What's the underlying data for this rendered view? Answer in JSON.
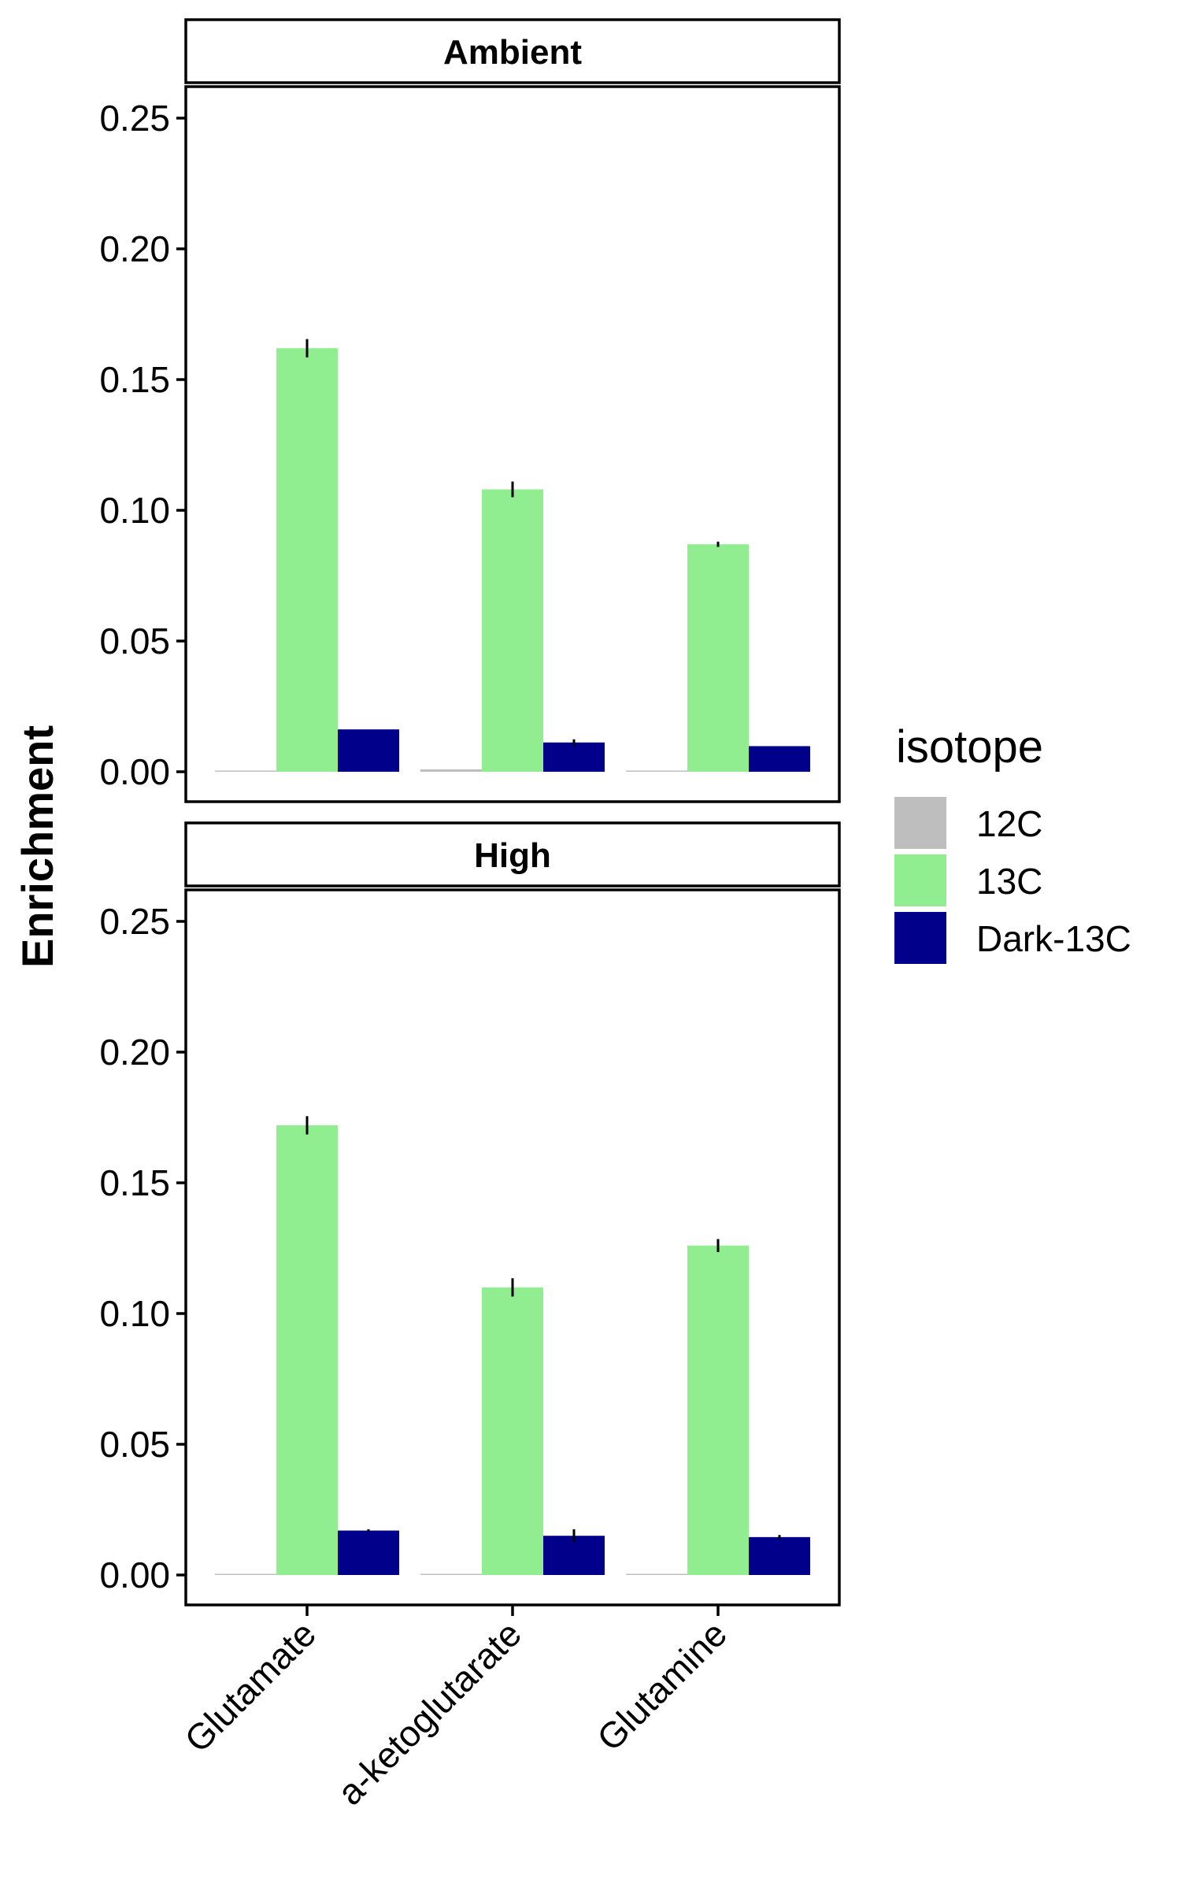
{
  "chart_data": {
    "type": "bar",
    "ylabel": "Enrichment",
    "xlabel": "",
    "ylim": [
      -0.006,
      0.26
    ],
    "yticks": [
      "0.00",
      "0.05",
      "0.10",
      "0.15",
      "0.20",
      "0.25"
    ],
    "categories": [
      "Glutamate",
      "a-ketoglutarate",
      "Glutamine"
    ],
    "legend": {
      "title": "isotope",
      "position": "right",
      "entries": [
        {
          "name": "12C",
          "color": "#bebebe"
        },
        {
          "name": "13C",
          "color": "#90ee90"
        },
        {
          "name": "Dark-13C",
          "color": "#00008b"
        }
      ]
    },
    "panels": [
      {
        "label": "Ambient",
        "series": [
          {
            "name": "12C",
            "values": [
              0.0001,
              0.0009,
              0.0001
            ],
            "errors": [
              0.0001,
              0.0003,
              0.0001
            ]
          },
          {
            "name": "13C",
            "values": [
              0.162,
              0.108,
              0.087
            ],
            "errors": [
              0.0035,
              0.003,
              0.001
            ]
          },
          {
            "name": "Dark-13C",
            "values": [
              0.0162,
              0.0112,
              0.0098
            ],
            "errors": [
              0.0002,
              0.0012,
              0.0003
            ]
          }
        ]
      },
      {
        "label": "High",
        "series": [
          {
            "name": "12C",
            "values": [
              0.0003,
              0.0004,
              0.0001
            ],
            "errors": [
              0.0002,
              0.0002,
              0.0001
            ]
          },
          {
            "name": "13C",
            "values": [
              0.172,
              0.11,
              0.126
            ],
            "errors": [
              0.0035,
              0.0035,
              0.0025
            ]
          },
          {
            "name": "Dark-13C",
            "values": [
              0.017,
              0.015,
              0.0145
            ],
            "errors": [
              0.0005,
              0.0025,
              0.0008
            ]
          }
        ]
      }
    ],
    "grid": false
  }
}
